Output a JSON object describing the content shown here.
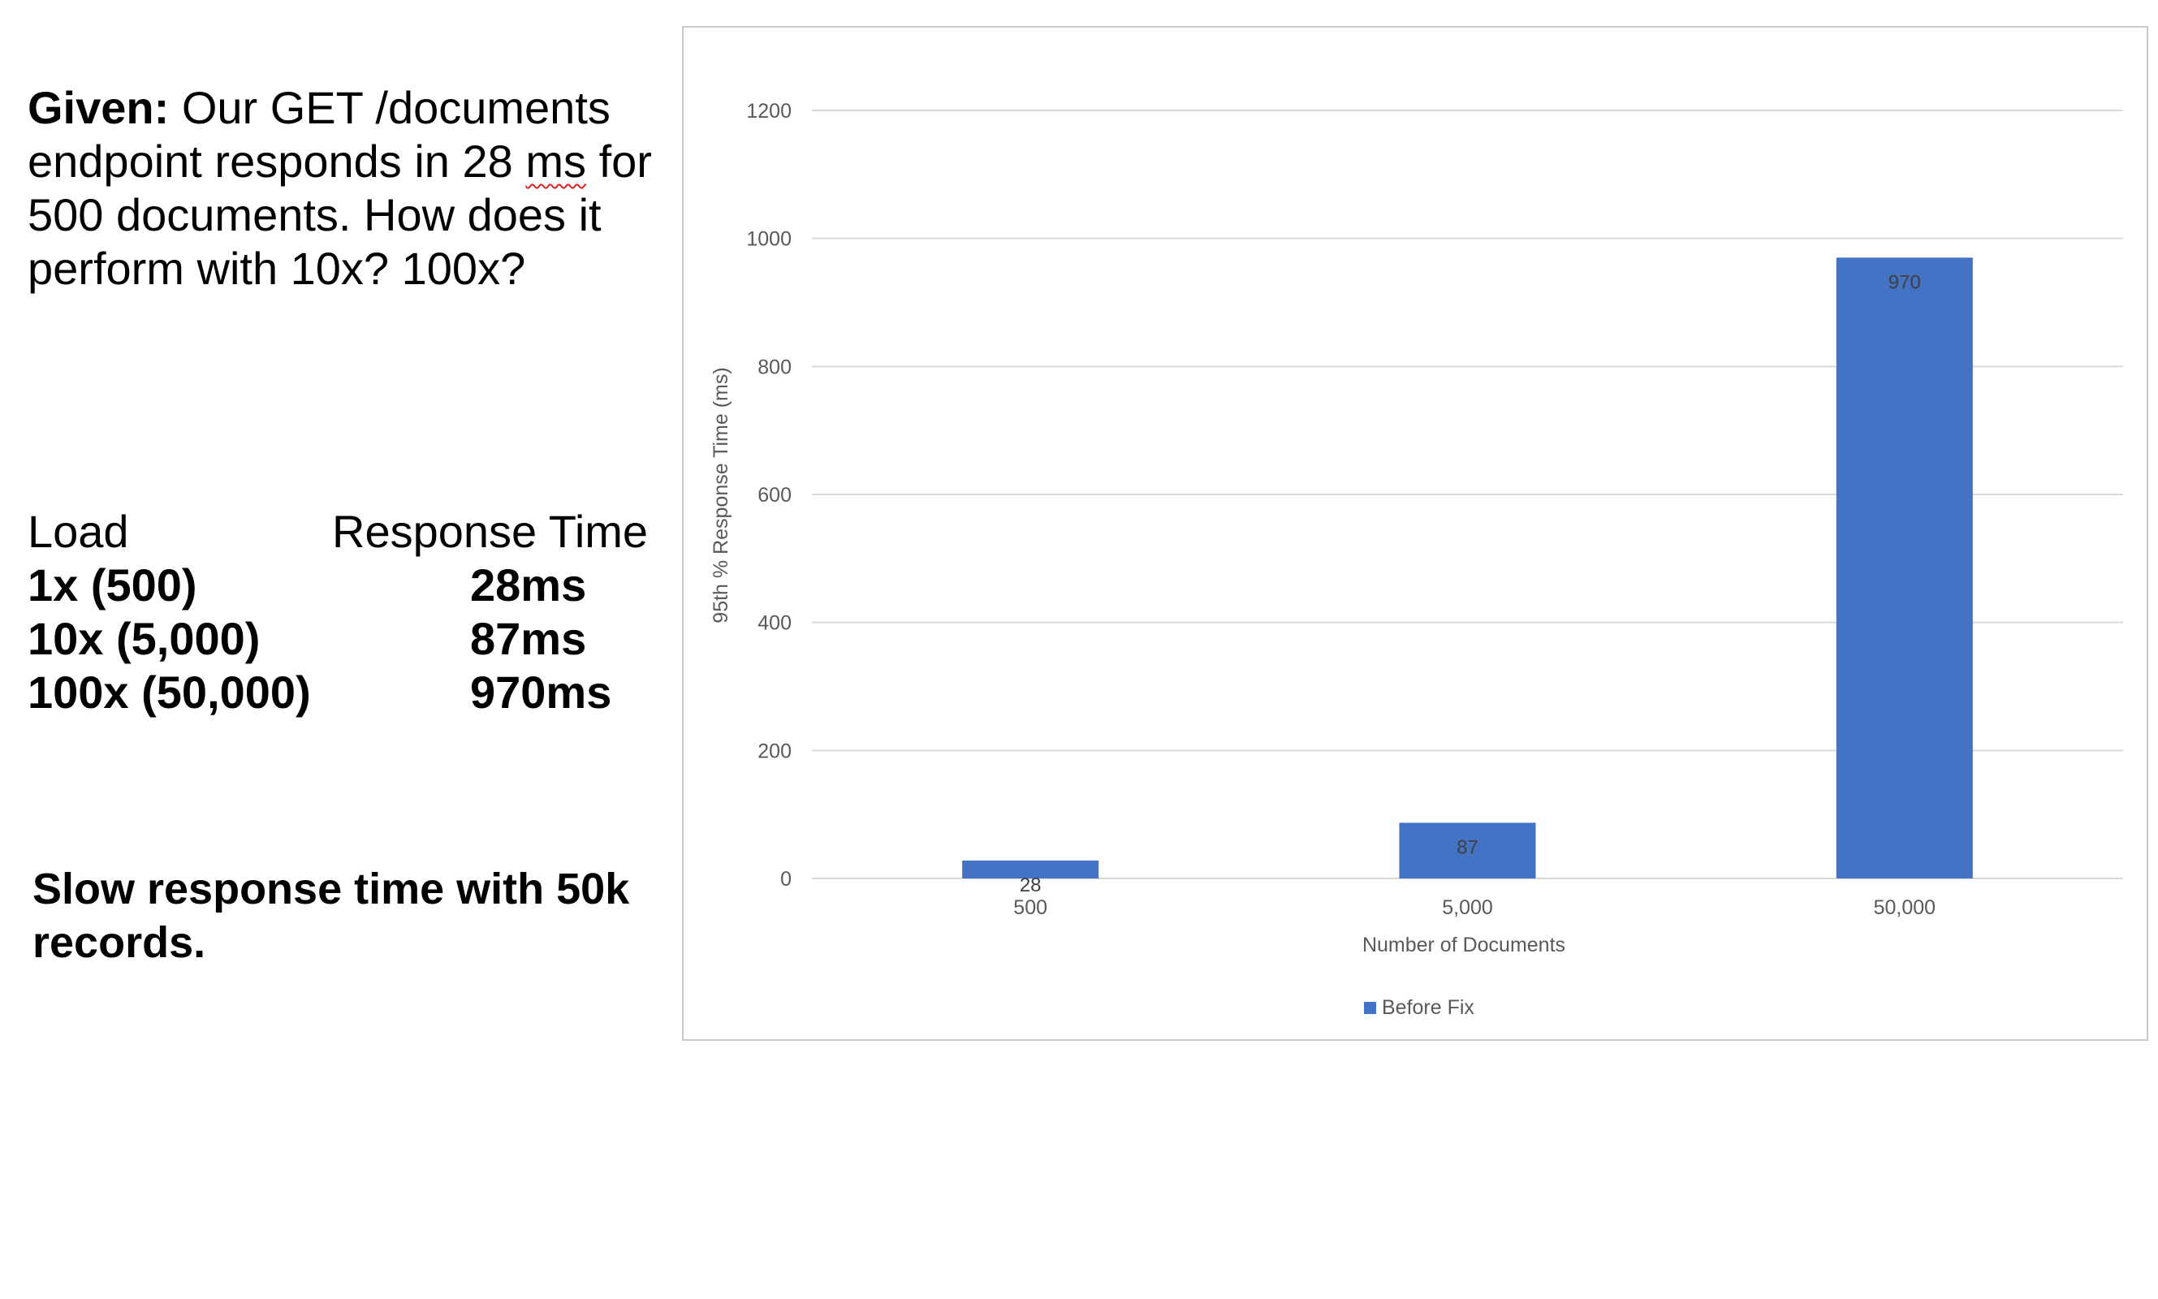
{
  "left": {
    "given_label": "Given:",
    "given_text": " Our GET /documents endpoint responds in 28 ",
    "given_ms": "ms",
    "given_text2": " for 500 documents. How does it perform with 10x? 100x?",
    "table": {
      "headers": [
        "Load",
        "Response Time"
      ],
      "rows": [
        [
          "1x (500)",
          "28ms"
        ],
        [
          "10x (5,000)",
          "87ms"
        ],
        [
          "100x (50,000)",
          "970ms"
        ]
      ]
    },
    "conclusion": "Slow response time with 50k records."
  },
  "chart_data": {
    "type": "bar",
    "categories": [
      "500",
      "5,000",
      "50,000"
    ],
    "series": [
      {
        "name": "Before Fix",
        "values": [
          28,
          87,
          970
        ],
        "color": "#4472C4"
      }
    ],
    "xlabel": "Number of Documents",
    "ylabel": "95th % Response Time (ms)",
    "ylim": [
      0,
      1200
    ],
    "yticks": [
      0,
      200,
      400,
      600,
      800,
      1000,
      1200
    ],
    "grid": true,
    "legend": "bottom"
  }
}
